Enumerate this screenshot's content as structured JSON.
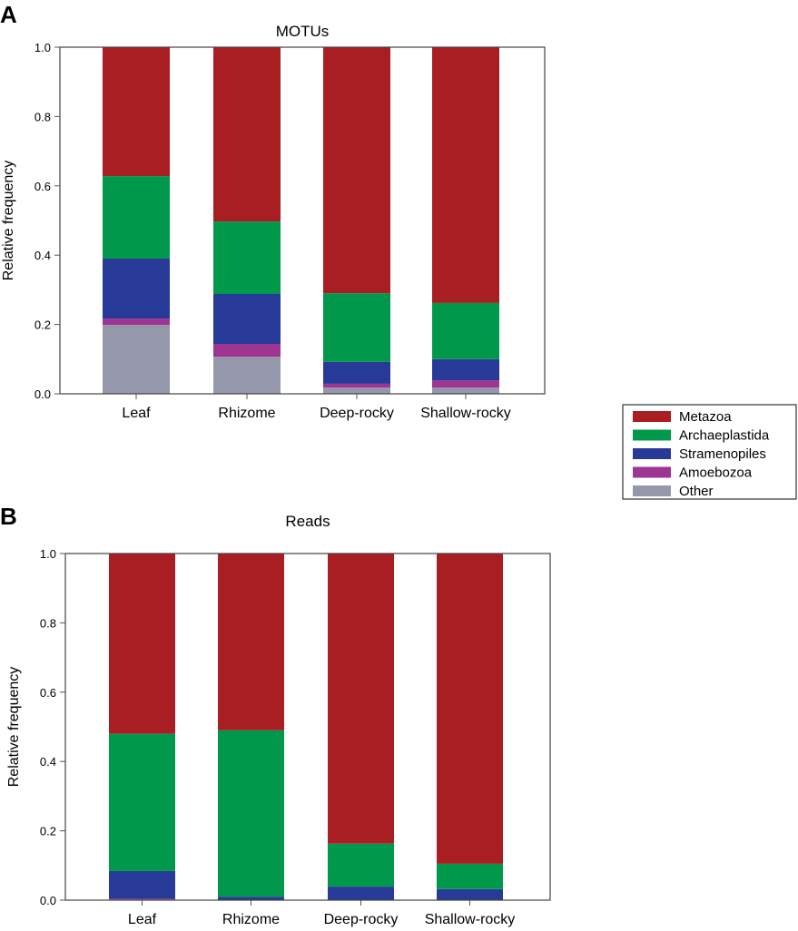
{
  "colors": {
    "Metazoa": "#a81e22",
    "Archaeplastida": "#00994c",
    "Stramenopiles": "#283a97",
    "Amoebozoa": "#9e3592",
    "Other": "#9598aa"
  },
  "legend": {
    "entries": [
      "Metazoa",
      "Archaeplastida",
      "Stramenopiles",
      "Amoebozoa",
      "Other"
    ],
    "placement": "right-center"
  },
  "chart_data": [
    {
      "panel": "A",
      "type": "bar",
      "stacked": true,
      "title": "MOTUs",
      "xlabel": "",
      "ylabel": "Relative frequency",
      "ylim": [
        0,
        1
      ],
      "yticks": [
        "0.0",
        "0.2",
        "0.4",
        "0.6",
        "0.8",
        "1.0"
      ],
      "categories": [
        "Leaf",
        "Rhizome",
        "Deep-rocky",
        "Shallow-rocky"
      ],
      "series": [
        {
          "name": "Other",
          "values": [
            0.199,
            0.107,
            0.018,
            0.018
          ]
        },
        {
          "name": "Amoebozoa",
          "values": [
            0.018,
            0.037,
            0.011,
            0.021
          ]
        },
        {
          "name": "Stramenopiles",
          "values": [
            0.173,
            0.144,
            0.063,
            0.061
          ]
        },
        {
          "name": "Archaeplastida",
          "values": [
            0.238,
            0.209,
            0.198,
            0.162
          ]
        },
        {
          "name": "Metazoa",
          "values": [
            0.372,
            0.503,
            0.71,
            0.738
          ]
        }
      ]
    },
    {
      "panel": "B",
      "type": "bar",
      "stacked": true,
      "title": "Reads",
      "xlabel": "",
      "ylabel": "Relative frequency",
      "ylim": [
        0,
        1
      ],
      "yticks": [
        "0.0",
        "0.2",
        "0.4",
        "0.6",
        "0.8",
        "1.0"
      ],
      "categories": [
        "Leaf",
        "Rhizome",
        "Deep-rocky",
        "Shallow-rocky"
      ],
      "series": [
        {
          "name": "Other",
          "values": [
            0.002,
            0.0,
            0.0,
            0.0
          ]
        },
        {
          "name": "Amoebozoa",
          "values": [
            0.002,
            0.0,
            0.0,
            0.001
          ]
        },
        {
          "name": "Stramenopiles",
          "values": [
            0.08,
            0.01,
            0.039,
            0.031
          ]
        },
        {
          "name": "Archaeplastida",
          "values": [
            0.396,
            0.48,
            0.124,
            0.073
          ]
        },
        {
          "name": "Metazoa",
          "values": [
            0.52,
            0.51,
            0.837,
            0.895
          ]
        }
      ]
    }
  ]
}
